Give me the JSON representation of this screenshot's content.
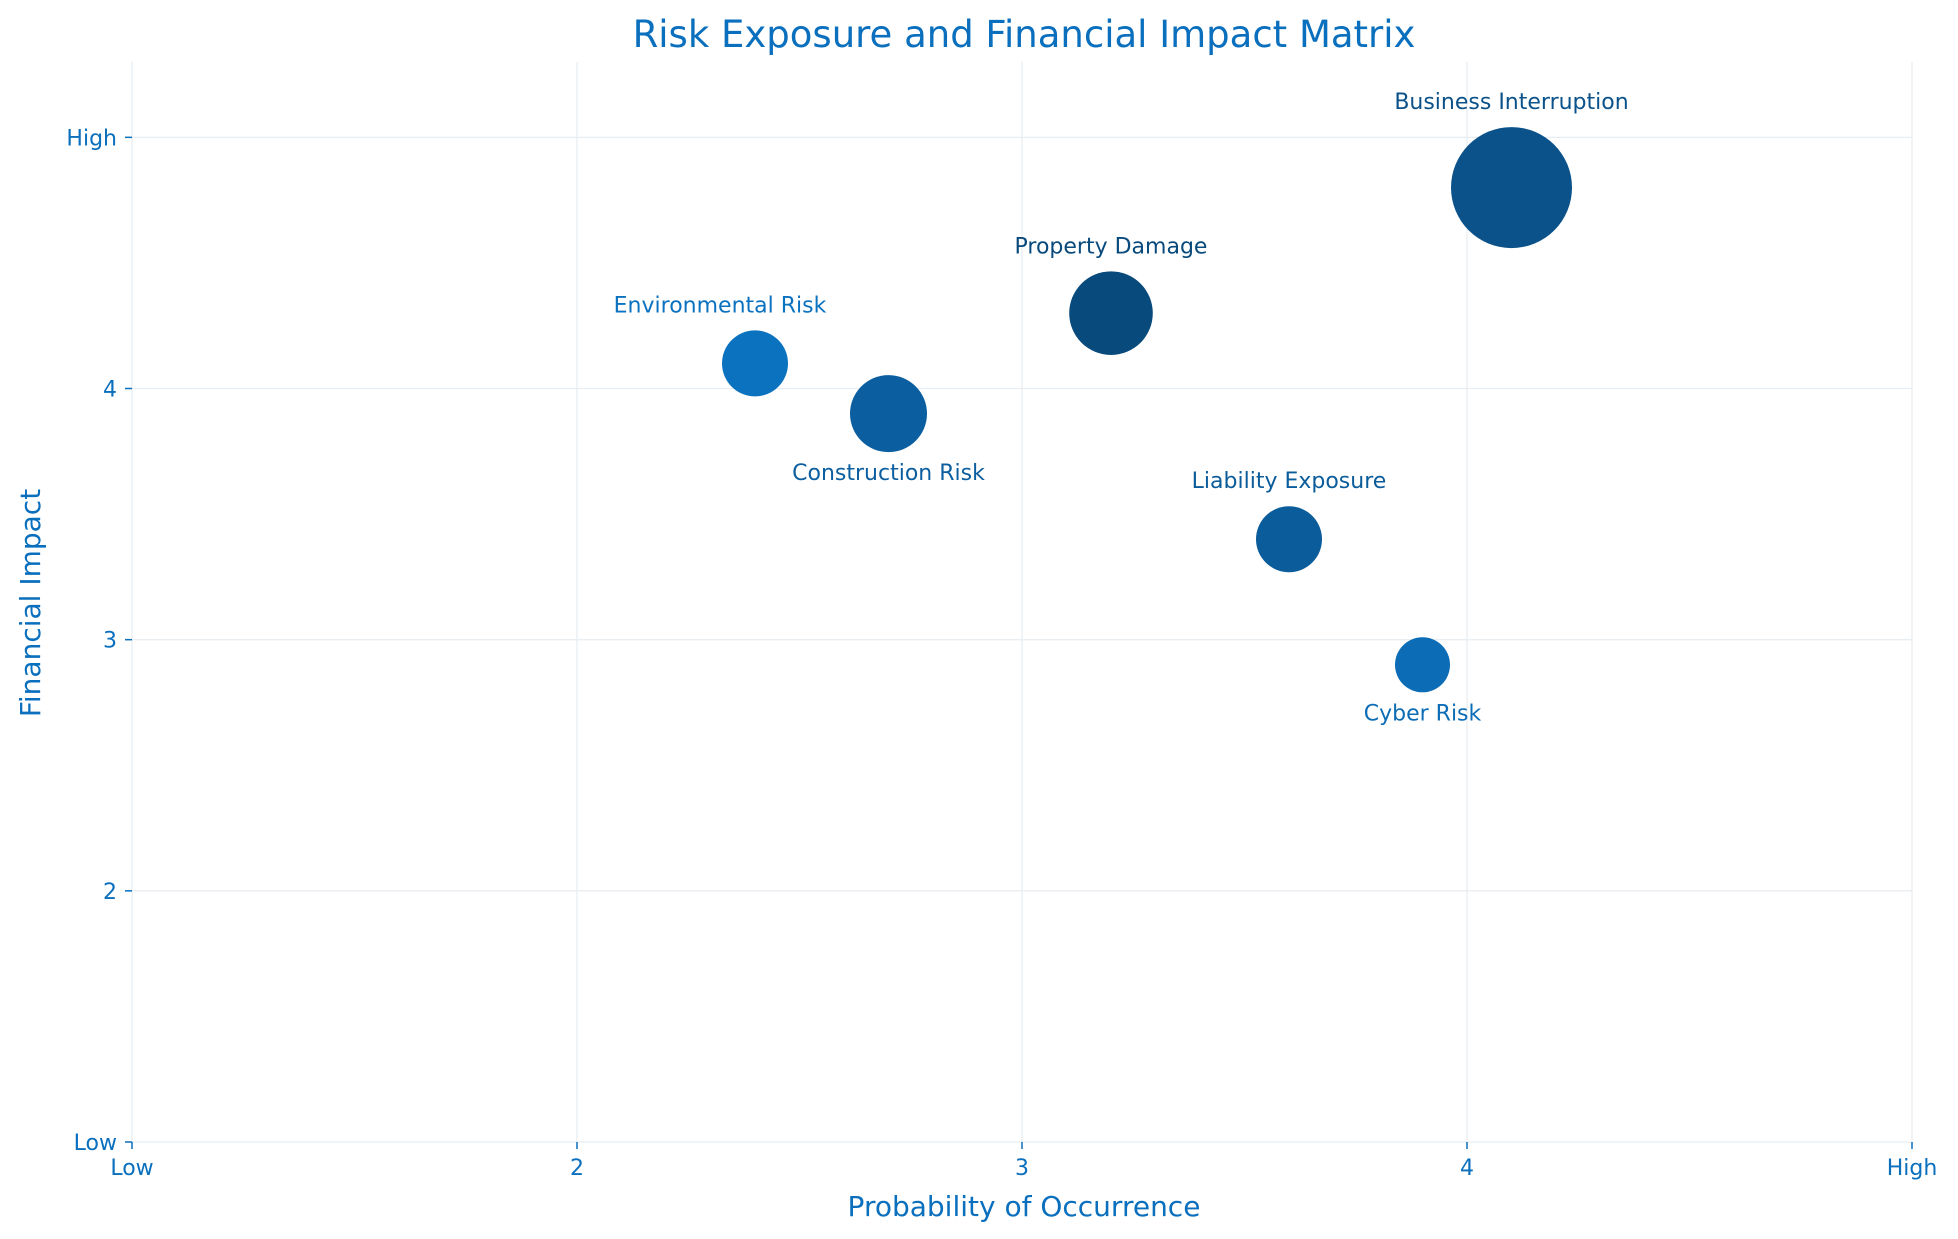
{
  "chart_data": {
    "type": "scatter",
    "title": "Risk Exposure and Financial Impact Matrix",
    "xlabel": "Probability of Occurrence",
    "ylabel": "Financial Impact",
    "xlim": [
      1,
      5
    ],
    "ylim": [
      1,
      5.3
    ],
    "x_ticks": [
      {
        "value": 1,
        "label": "Low"
      },
      {
        "value": 2,
        "label": "2"
      },
      {
        "value": 3,
        "label": "3"
      },
      {
        "value": 4,
        "label": "4"
      },
      {
        "value": 5,
        "label": "High"
      }
    ],
    "y_ticks": [
      {
        "value": 1,
        "label": "Low"
      },
      {
        "value": 2,
        "label": "2"
      },
      {
        "value": 3,
        "label": "3"
      },
      {
        "value": 4,
        "label": "4"
      },
      {
        "value": 5,
        "label": "High"
      }
    ],
    "grid": true,
    "colors": {
      "text": "#0a6fbd",
      "grid": "#e8edf2",
      "axis": "#0a6fbd"
    },
    "points": [
      {
        "label": "Environmental Risk",
        "x": 2.4,
        "y": 4.1,
        "size": 3.0,
        "color": "#0b72c0",
        "label_position": "above"
      },
      {
        "label": "Construction Risk",
        "x": 2.7,
        "y": 3.9,
        "size": 3.5,
        "color": "#0b5e9f",
        "label_position": "below"
      },
      {
        "label": "Property Damage",
        "x": 3.2,
        "y": 4.3,
        "size": 3.8,
        "color": "#084a7c",
        "label_position": "above"
      },
      {
        "label": "Business Interruption",
        "x": 4.1,
        "y": 4.8,
        "size": 5.5,
        "color": "#0b528a",
        "label_position": "above"
      },
      {
        "label": "Liability Exposure",
        "x": 3.6,
        "y": 3.4,
        "size": 3.0,
        "color": "#0b5c9a",
        "label_position": "above"
      },
      {
        "label": "Cyber Risk",
        "x": 3.9,
        "y": 2.9,
        "size": 2.5,
        "color": "#0c6db6",
        "label_position": "below"
      }
    ]
  }
}
